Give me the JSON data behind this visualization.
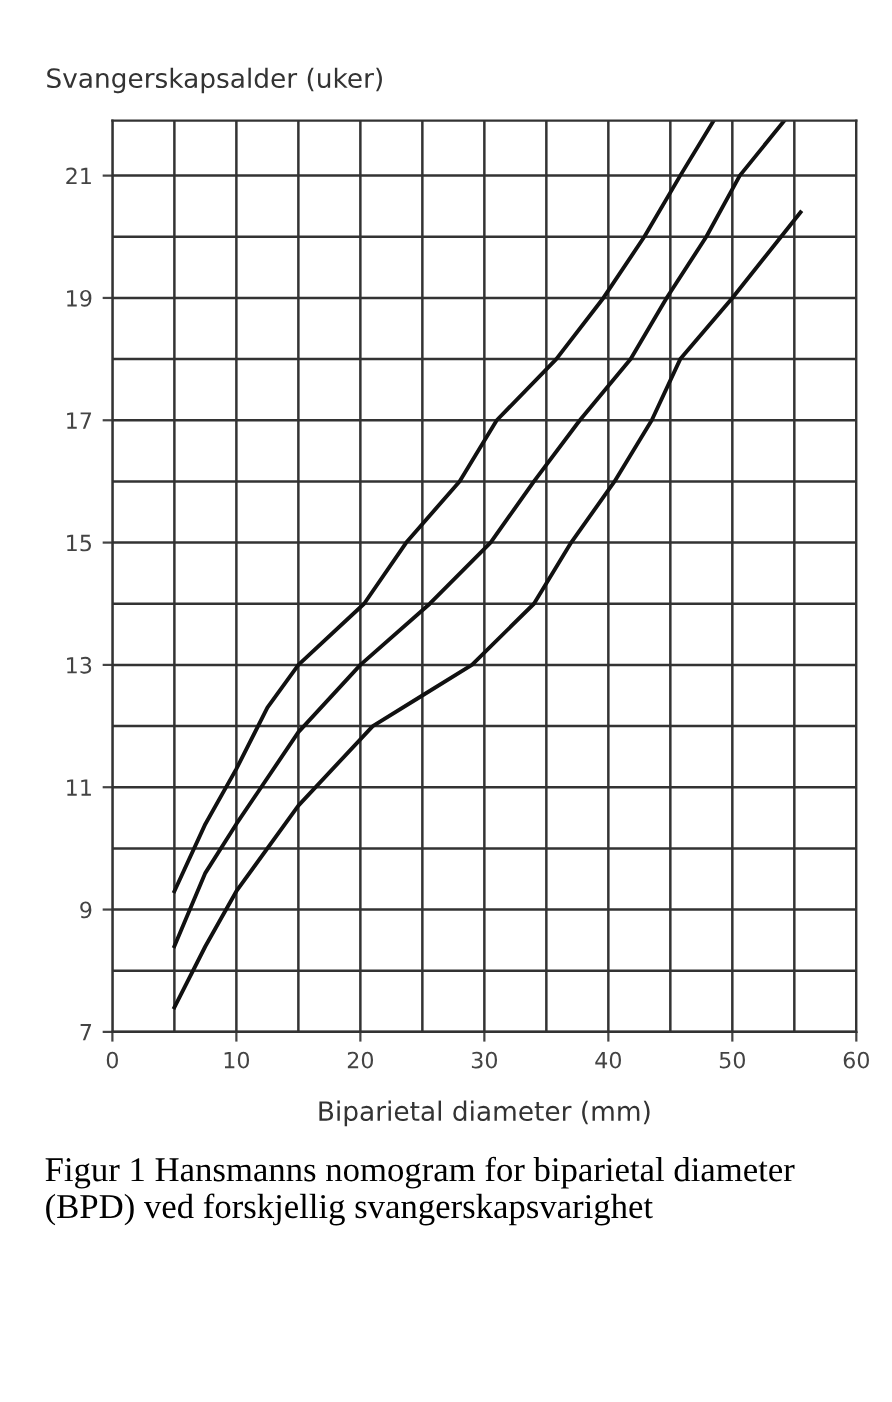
{
  "chart_data": {
    "type": "line",
    "ylabel": "Svangerskapsalder (uker)",
    "xlabel": "Biparietal diameter (mm)",
    "annotations": [
      "Figur 1 Hansmanns nomogram for biparietal diameter (BPD) ved forskjellig svangerskapsvarighet"
    ],
    "xlim": [
      0,
      60
    ],
    "xticks": [
      0,
      10,
      20,
      30,
      40,
      50,
      60
    ],
    "ylim": [
      7,
      21.9
    ],
    "yticks": [
      7,
      9,
      11,
      13,
      15,
      17,
      19,
      21
    ],
    "grid": true,
    "legend": false,
    "marker": "none",
    "line_style": "solid",
    "series": [
      {
        "color": "#111111",
        "x": [
          5,
          7.5,
          10,
          12.5,
          15,
          20.3,
          23.7,
          28,
          31,
          35.8,
          39.6,
          42.9,
          45.8,
          48.5
        ],
        "values": [
          9.3,
          10.4,
          11.3,
          12.3,
          13.0,
          14,
          15,
          16,
          17,
          18,
          19,
          20,
          21,
          21.9
        ]
      },
      {
        "color": "#111111",
        "x": [
          5,
          7.5,
          10,
          15,
          20,
          25.6,
          30.5,
          34,
          37.7,
          41.8,
          44.7,
          47.9,
          50.6,
          54.2
        ],
        "values": [
          8.4,
          9.6,
          10.4,
          11.9,
          13.0,
          14,
          15,
          16,
          17,
          18,
          19,
          20,
          21,
          21.9
        ]
      },
      {
        "color": "#111111",
        "x": [
          5,
          7.5,
          10,
          15,
          21,
          25,
          29,
          34,
          37,
          40.5,
          43.5,
          45.8,
          50,
          55.5
        ],
        "values": [
          7.4,
          8.4,
          9.3,
          10.7,
          12,
          12.5,
          13,
          14,
          15,
          16,
          17,
          18,
          19,
          20.4
        ]
      }
    ]
  }
}
